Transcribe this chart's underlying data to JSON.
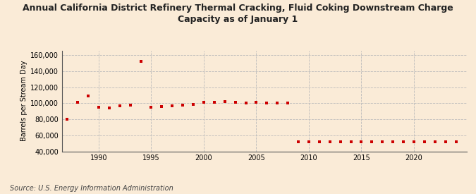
{
  "title_line1": "Annual California District Refinery Thermal Cracking, Fluid Coking Downstream Charge",
  "title_line2": "Capacity as of January 1",
  "ylabel": "Barrels per Stream Day",
  "source": "Source: U.S. Energy Information Administration",
  "background_color": "#faebd7",
  "plot_bg_color": "#faebd7",
  "marker_color": "#cc0000",
  "grid_color": "#bbbbbb",
  "years": [
    1987,
    1988,
    1989,
    1990,
    1991,
    1992,
    1993,
    1994,
    1995,
    1996,
    1997,
    1998,
    1999,
    2000,
    2001,
    2002,
    2003,
    2004,
    2005,
    2006,
    2007,
    2008,
    2009,
    2010,
    2011,
    2012,
    2013,
    2014,
    2015,
    2016,
    2017,
    2018,
    2019,
    2020,
    2021,
    2022,
    2023,
    2024
  ],
  "values": [
    80000,
    101500,
    109000,
    95000,
    94000,
    97000,
    98000,
    152500,
    95500,
    96000,
    97000,
    98000,
    99000,
    101000,
    101500,
    102000,
    101500,
    100500,
    101000,
    100500,
    100000,
    100000,
    51500,
    51500,
    51500,
    51500,
    51500,
    51500,
    51500,
    51500,
    51500,
    51500,
    51500,
    51500,
    51500,
    51500,
    51500,
    51500
  ],
  "ylim": [
    40000,
    166000
  ],
  "yticks": [
    40000,
    60000,
    80000,
    100000,
    120000,
    140000,
    160000
  ],
  "xlim": [
    1986.5,
    2025
  ],
  "xticks": [
    1990,
    1995,
    2000,
    2005,
    2010,
    2015,
    2020
  ],
  "title_fontsize": 9,
  "ylabel_fontsize": 7,
  "tick_fontsize": 7,
  "source_fontsize": 7
}
